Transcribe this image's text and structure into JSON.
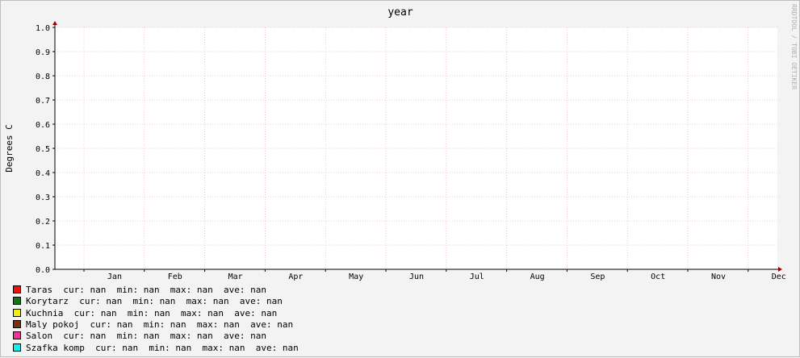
{
  "chart_data": {
    "type": "line",
    "title": "year",
    "ylabel": "Degrees C",
    "xlabel": "",
    "watermark": "RRDTOOL / TOBI OETIKER",
    "ylim": [
      0,
      1.0
    ],
    "yticks": [
      0.0,
      0.1,
      0.2,
      0.3,
      0.4,
      0.5,
      0.6,
      0.7,
      0.8,
      0.9,
      1.0
    ],
    "ytick_labels": [
      "0.0",
      "0.1",
      "0.2",
      "0.3",
      "0.4",
      "0.5",
      "0.6",
      "0.7",
      "0.8",
      "0.9",
      "1.0"
    ],
    "xtick_labels": [
      "Jan",
      "Feb",
      "Mar",
      "Apr",
      "May",
      "Jun",
      "Jul",
      "Aug",
      "Sep",
      "Oct",
      "Nov",
      "Dec"
    ],
    "grid": true,
    "legend_position": "bottom-left",
    "series": [
      {
        "name": "Taras",
        "color": "#ee1111",
        "values": [],
        "cur": "nan",
        "min": "nan",
        "max": "nan",
        "ave": "nan"
      },
      {
        "name": "Korytarz",
        "color": "#117711",
        "values": [],
        "cur": "nan",
        "min": "nan",
        "max": "nan",
        "ave": "nan"
      },
      {
        "name": "Kuchnia",
        "color": "#eeee11",
        "values": [],
        "cur": "nan",
        "min": "nan",
        "max": "nan",
        "ave": "nan"
      },
      {
        "name": "Maly pokoj",
        "color": "#773311",
        "values": [],
        "cur": "nan",
        "min": "nan",
        "max": "nan",
        "ave": "nan"
      },
      {
        "name": "Salon",
        "color": "#ee3399",
        "values": [],
        "cur": "nan",
        "min": "nan",
        "max": "nan",
        "ave": "nan"
      },
      {
        "name": "Szafka komp",
        "color": "#11eeee",
        "values": [],
        "cur": "nan",
        "min": "nan",
        "max": "nan",
        "ave": "nan"
      }
    ],
    "legend_labels": {
      "cur": "cur:",
      "min": "min:",
      "max": "max:",
      "ave": "ave:"
    }
  }
}
